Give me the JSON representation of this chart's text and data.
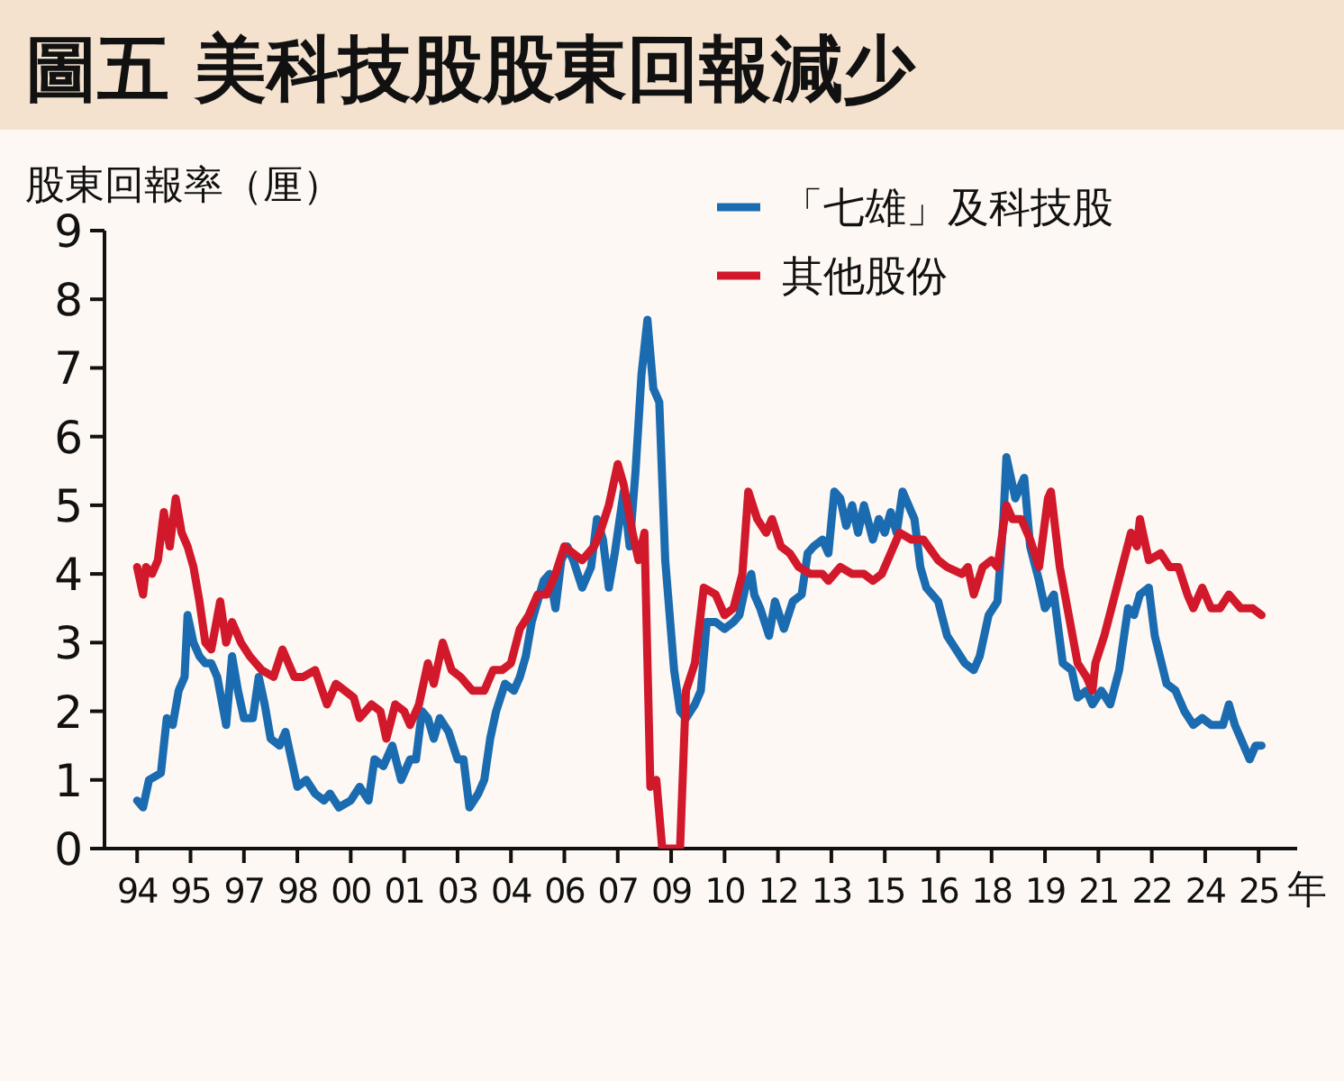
{
  "chart_data": {
    "type": "line",
    "title": "圖五  美科技股股東回報減少",
    "ylabel": "股東回報率（厘）",
    "xlabel": "年",
    "xlim": [
      "1993-02",
      "2026-08"
    ],
    "ylim": [
      0,
      9
    ],
    "yticks": [
      0,
      1,
      2,
      3,
      4,
      5,
      6,
      7,
      8,
      9
    ],
    "xticks": [
      {
        "value": "1994-01",
        "label": "94"
      },
      {
        "value": "1995-07",
        "label": "95"
      },
      {
        "value": "1997-01",
        "label": "97"
      },
      {
        "value": "1998-07",
        "label": "98"
      },
      {
        "value": "2000-01",
        "label": "00"
      },
      {
        "value": "2001-07",
        "label": "01"
      },
      {
        "value": "2003-01",
        "label": "03"
      },
      {
        "value": "2004-07",
        "label": "04"
      },
      {
        "value": "2006-01",
        "label": "06"
      },
      {
        "value": "2007-07",
        "label": "07"
      },
      {
        "value": "2009-01",
        "label": "09"
      },
      {
        "value": "2010-07",
        "label": "10"
      },
      {
        "value": "2012-01",
        "label": "12"
      },
      {
        "value": "2013-07",
        "label": "13"
      },
      {
        "value": "2015-01",
        "label": "15"
      },
      {
        "value": "2016-07",
        "label": "16"
      },
      {
        "value": "2018-01",
        "label": "18"
      },
      {
        "value": "2019-07",
        "label": "19"
      },
      {
        "value": "2021-01",
        "label": "21"
      },
      {
        "value": "2022-07",
        "label": "22"
      },
      {
        "value": "2024-01",
        "label": "24"
      },
      {
        "value": "2025-07",
        "label": "25"
      }
    ],
    "grid": false,
    "legend": "top right",
    "line_style": "solid",
    "series": [
      {
        "name": "「七雄」及科技股",
        "color": "#1a6bb0",
        "x": [
          "1994-01",
          "1994-03",
          "1994-05",
          "1994-09",
          "1994-11",
          "1995-01",
          "1995-03",
          "1995-05",
          "1995-06",
          "1995-08",
          "1995-10",
          "1995-12",
          "1996-02",
          "1996-04",
          "1996-07",
          "1996-09",
          "1996-11",
          "1997-01",
          "1997-04",
          "1997-06",
          "1997-08",
          "1997-10",
          "1998-01",
          "1998-03",
          "1998-05",
          "1998-07",
          "1998-10",
          "1999-01",
          "1999-04",
          "1999-06",
          "1999-09",
          "2000-01",
          "2000-04",
          "2000-07",
          "2000-09",
          "2000-12",
          "2001-03",
          "2001-06",
          "2001-09",
          "2001-11",
          "2002-01",
          "2002-03",
          "2002-05",
          "2002-07",
          "2002-10",
          "2003-01",
          "2003-03",
          "2003-05",
          "2003-08",
          "2003-10",
          "2003-12",
          "2004-02",
          "2004-05",
          "2004-08",
          "2004-10",
          "2004-12",
          "2005-02",
          "2005-04",
          "2005-06",
          "2005-08",
          "2005-10",
          "2005-12",
          "2006-02",
          "2006-04",
          "2006-07",
          "2006-10",
          "2006-12",
          "2007-02",
          "2007-04",
          "2007-06",
          "2007-09",
          "2007-11",
          "2008-01",
          "2008-03",
          "2008-05",
          "2008-07",
          "2008-09",
          "2008-11",
          "2009-02",
          "2009-04",
          "2009-06",
          "2009-09",
          "2009-11",
          "2010-01",
          "2010-04",
          "2010-07",
          "2010-10",
          "2010-12",
          "2011-02",
          "2011-04",
          "2011-05",
          "2011-07",
          "2011-10",
          "2011-12",
          "2012-03",
          "2012-06",
          "2012-09",
          "2012-11",
          "2013-01",
          "2013-04",
          "2013-06",
          "2013-08",
          "2013-10",
          "2013-12",
          "2014-02",
          "2014-04",
          "2014-06",
          "2014-09",
          "2014-11",
          "2015-01",
          "2015-03",
          "2015-05",
          "2015-07",
          "2015-09",
          "2015-11",
          "2016-01",
          "2016-03",
          "2016-07",
          "2016-10",
          "2017-01",
          "2017-04",
          "2017-07",
          "2017-09",
          "2017-12",
          "2018-03",
          "2018-05",
          "2018-06",
          "2018-09",
          "2018-12",
          "2019-02",
          "2019-05",
          "2019-07",
          "2019-10",
          "2020-01",
          "2020-04",
          "2020-06",
          "2020-09",
          "2020-11",
          "2021-02",
          "2021-05",
          "2021-08",
          "2021-11",
          "2022-01",
          "2022-03",
          "2022-06",
          "2022-08",
          "2022-12",
          "2023-03",
          "2023-06",
          "2023-09",
          "2023-12",
          "2024-03",
          "2024-07",
          "2024-09",
          "2024-11",
          "2025-01",
          "2025-04",
          "2025-06",
          "2025-08"
        ],
        "values": [
          0.7,
          0.6,
          1.0,
          1.1,
          1.9,
          1.8,
          2.3,
          2.5,
          3.4,
          3.0,
          2.8,
          2.7,
          2.7,
          2.5,
          1.8,
          2.8,
          2.3,
          1.9,
          1.9,
          2.5,
          2.1,
          1.6,
          1.5,
          1.7,
          1.3,
          0.9,
          1.0,
          0.8,
          0.7,
          0.8,
          0.6,
          0.7,
          0.9,
          0.7,
          1.3,
          1.2,
          1.5,
          1.0,
          1.3,
          1.3,
          2.0,
          1.9,
          1.6,
          1.9,
          1.7,
          1.3,
          1.3,
          0.6,
          0.8,
          1.0,
          1.6,
          2.0,
          2.4,
          2.3,
          2.5,
          2.8,
          3.3,
          3.6,
          3.9,
          4.0,
          3.5,
          4.2,
          4.4,
          4.2,
          3.8,
          4.1,
          4.8,
          4.5,
          3.8,
          4.3,
          5.2,
          4.4,
          5.5,
          6.9,
          7.7,
          6.7,
          6.5,
          4.2,
          2.6,
          2.0,
          1.9,
          2.1,
          2.3,
          3.3,
          3.3,
          3.2,
          3.3,
          3.4,
          3.8,
          4.0,
          3.7,
          3.5,
          3.1,
          3.6,
          3.2,
          3.6,
          3.7,
          4.3,
          4.4,
          4.5,
          4.3,
          5.2,
          5.1,
          4.7,
          5.0,
          4.6,
          5.0,
          4.5,
          4.8,
          4.6,
          4.9,
          4.6,
          5.2,
          5.0,
          4.8,
          4.1,
          3.8,
          3.6,
          3.1,
          2.9,
          2.7,
          2.6,
          2.8,
          3.4,
          3.6,
          4.8,
          5.7,
          5.1,
          5.4,
          4.4,
          3.9,
          3.5,
          3.7,
          2.7,
          2.6,
          2.2,
          2.3,
          2.1,
          2.3,
          2.1,
          2.6,
          3.5,
          3.4,
          3.7,
          3.8,
          3.1,
          2.4,
          2.3,
          2.0,
          1.8,
          1.9,
          1.8,
          1.8,
          2.1,
          1.8,
          1.6,
          1.3,
          1.5,
          1.5
        ]
      },
      {
        "name": "其他股份",
        "color": "#d2182b",
        "x": [
          "1994-01",
          "1994-03",
          "1994-04",
          "1994-06",
          "1994-08",
          "1994-10",
          "1994-12",
          "1995-02",
          "1995-04",
          "1995-06",
          "1995-08",
          "1995-10",
          "1995-12",
          "1996-02",
          "1996-05",
          "1996-07",
          "1996-09",
          "1996-12",
          "1997-03",
          "1997-07",
          "1997-11",
          "1998-02",
          "1998-04",
          "1998-06",
          "1998-09",
          "1999-01",
          "1999-05",
          "1999-08",
          "1999-11",
          "2000-02",
          "2000-04",
          "2000-08",
          "2000-11",
          "2001-01",
          "2001-04",
          "2001-07",
          "2001-09",
          "2001-12",
          "2002-03",
          "2002-05",
          "2002-08",
          "2002-11",
          "2003-02",
          "2003-06",
          "2003-10",
          "2004-01",
          "2004-04",
          "2004-07",
          "2004-10",
          "2005-01",
          "2005-04",
          "2005-07",
          "2005-10",
          "2006-01",
          "2006-04",
          "2006-07",
          "2006-11",
          "2007-01",
          "2007-04",
          "2007-07",
          "2007-09",
          "2007-12",
          "2008-02",
          "2008-04",
          "2008-06",
          "2008-08",
          "2008-10",
          "2009-04",
          "2009-06",
          "2009-09",
          "2009-12",
          "2010-04",
          "2010-07",
          "2010-10",
          "2011-01",
          "2011-03",
          "2011-06",
          "2011-09",
          "2011-11",
          "2012-02",
          "2012-05",
          "2012-08",
          "2012-12",
          "2013-04",
          "2013-06",
          "2013-10",
          "2014-02",
          "2014-06",
          "2014-09",
          "2014-12",
          "2015-03",
          "2015-06",
          "2015-10",
          "2016-02",
          "2016-07",
          "2016-10",
          "2017-03",
          "2017-05",
          "2017-07",
          "2017-10",
          "2018-01",
          "2018-03",
          "2018-06",
          "2018-08",
          "2018-11",
          "2019-02",
          "2019-05",
          "2019-08",
          "2019-09",
          "2019-12",
          "2020-03",
          "2020-06",
          "2020-09",
          "2020-11",
          "2020-12",
          "2021-03",
          "2021-06",
          "2021-09",
          "2021-12",
          "2022-02",
          "2022-03",
          "2022-06",
          "2022-10",
          "2023-01",
          "2023-04",
          "2023-07",
          "2023-09",
          "2023-12",
          "2024-03",
          "2024-06",
          "2024-09",
          "2025-01",
          "2025-05",
          "2025-08"
        ],
        "values": [
          4.1,
          3.7,
          4.1,
          4.0,
          4.2,
          4.9,
          4.4,
          5.1,
          4.6,
          4.4,
          4.1,
          3.6,
          3.0,
          2.9,
          3.6,
          3.0,
          3.3,
          3.0,
          2.8,
          2.6,
          2.5,
          2.9,
          2.7,
          2.5,
          2.5,
          2.6,
          2.1,
          2.4,
          2.3,
          2.2,
          1.9,
          2.1,
          2.0,
          1.6,
          2.1,
          2.0,
          1.8,
          2.1,
          2.7,
          2.4,
          3.0,
          2.6,
          2.5,
          2.3,
          2.3,
          2.6,
          2.6,
          2.7,
          3.2,
          3.4,
          3.7,
          3.7,
          4.0,
          4.4,
          4.3,
          4.2,
          4.4,
          4.6,
          5.0,
          5.6,
          5.3,
          4.6,
          4.2,
          4.6,
          0.9,
          1.0,
          0,
          0,
          2.3,
          2.7,
          3.8,
          3.7,
          3.4,
          3.5,
          4.0,
          5.2,
          4.8,
          4.6,
          4.8,
          4.4,
          4.3,
          4.1,
          4.0,
          4.0,
          3.9,
          4.1,
          4.0,
          4.0,
          3.9,
          4.0,
          4.3,
          4.6,
          4.5,
          4.5,
          4.2,
          4.1,
          4.0,
          4.1,
          3.7,
          4.1,
          4.2,
          4.1,
          5.0,
          4.8,
          4.8,
          4.5,
          4.1,
          5.1,
          5.2,
          4.1,
          3.4,
          2.7,
          2.5,
          2.3,
          2.7,
          3.1,
          3.6,
          4.1,
          4.6,
          4.4,
          4.8,
          4.2,
          4.3,
          4.1,
          4.1,
          3.7,
          3.5,
          3.8,
          3.5,
          3.5,
          3.7,
          3.5,
          3.5,
          3.4
        ]
      }
    ]
  }
}
